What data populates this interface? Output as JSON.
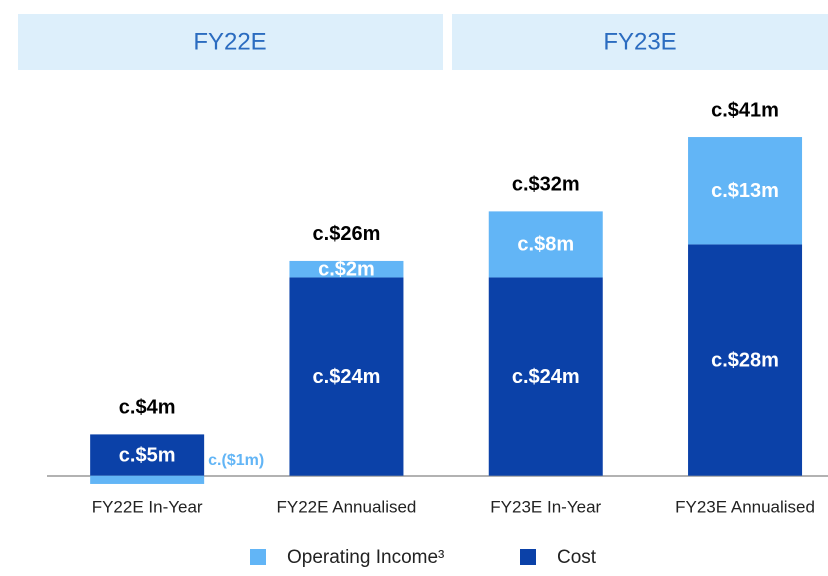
{
  "chart_data": {
    "type": "stacked_bar",
    "headers": [
      "FY22E",
      "FY23E"
    ],
    "categories": [
      "FY22E In-Year",
      "FY22E Annualised",
      "FY23E In-Year",
      "FY23E Annualised"
    ],
    "series": [
      {
        "name": "Cost",
        "color": "#0b41a8",
        "values": [
          5,
          24,
          24,
          28
        ],
        "value_labels": [
          "c.$5m",
          "c.$24m",
          "c.$24m",
          "c.$28m"
        ]
      },
      {
        "name": "Operating Income³",
        "color": "#62b5f6",
        "values": [
          -1,
          2,
          8,
          13
        ],
        "value_labels": [
          "c.($1m)",
          "c.$2m",
          "c.$8m",
          "c.$13m"
        ]
      }
    ],
    "totals": [
      4,
      26,
      32,
      41
    ],
    "total_labels": [
      "c.$4m",
      "c.$26m",
      "c.$32m",
      "c.$41m"
    ],
    "ylim": [
      -5,
      45
    ],
    "legend": "bottom"
  }
}
